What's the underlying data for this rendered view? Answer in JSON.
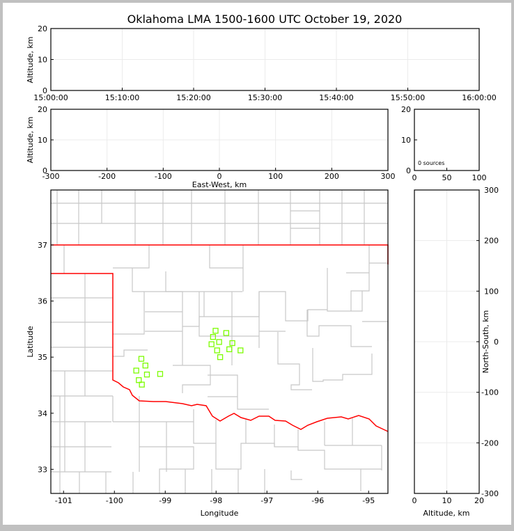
{
  "chart_data": [
    {
      "id": "time-altitude",
      "type": "scatter",
      "title": "Oklahoma LMA 1500-1600 UTC October 19, 2020",
      "ylabel": "Altitude, km",
      "xlim": [
        "15:00:00",
        "16:00:00"
      ],
      "ylim": [
        0,
        20
      ],
      "xticks": [
        "15:00:00",
        "15:10:00",
        "15:20:00",
        "15:30:00",
        "15:40:00",
        "15:50:00",
        "16:00:00"
      ],
      "yticks": [
        0,
        10,
        20
      ],
      "grid": true,
      "points": []
    },
    {
      "id": "eastwest-altitude",
      "type": "scatter",
      "xlabel": "East-West, km",
      "ylabel": "Altitude, km",
      "xlim": [
        -300,
        300
      ],
      "ylim": [
        0,
        20
      ],
      "xticks": [
        -300,
        -200,
        -100,
        0,
        100,
        200,
        300
      ],
      "yticks": [
        0,
        10,
        20
      ],
      "grid": true,
      "points": []
    },
    {
      "id": "altitude-histogram",
      "type": "bar",
      "xlim": [
        0,
        100
      ],
      "ylim": [
        0,
        20
      ],
      "xticks": [
        0,
        50,
        100
      ],
      "yticks": [
        0,
        10,
        20
      ],
      "annotation": "0 sources",
      "values": []
    },
    {
      "id": "plan-view",
      "type": "scatter",
      "xlabel": "Longitude",
      "ylabel": "Latitude",
      "xlim": [
        -101.25,
        -94.62
      ],
      "ylim": [
        32.57,
        37.98
      ],
      "xticks": [
        -101,
        -100,
        -99,
        -98,
        -97,
        -96,
        -95
      ],
      "yticks": [
        33,
        34,
        35,
        36,
        37
      ],
      "marker": "open-square",
      "marker_color": "#7cfc00",
      "border_color": "#ff0000",
      "county_color": "#c8c8c8",
      "points": [
        {
          "lon": -98.01,
          "lat": 35.47
        },
        {
          "lon": -97.8,
          "lat": 35.43
        },
        {
          "lon": -98.06,
          "lat": 35.36
        },
        {
          "lon": -97.94,
          "lat": 35.27
        },
        {
          "lon": -98.09,
          "lat": 35.23
        },
        {
          "lon": -97.68,
          "lat": 35.25
        },
        {
          "lon": -97.98,
          "lat": 35.12
        },
        {
          "lon": -97.74,
          "lat": 35.14
        },
        {
          "lon": -97.52,
          "lat": 35.12
        },
        {
          "lon": -97.92,
          "lat": 35.0
        },
        {
          "lon": -99.47,
          "lat": 34.97
        },
        {
          "lon": -99.39,
          "lat": 34.85
        },
        {
          "lon": -99.57,
          "lat": 34.76
        },
        {
          "lon": -99.36,
          "lat": 34.69
        },
        {
          "lon": -99.1,
          "lat": 34.7
        },
        {
          "lon": -99.52,
          "lat": 34.59
        },
        {
          "lon": -99.46,
          "lat": 34.51
        }
      ]
    },
    {
      "id": "northsouth-altitude",
      "type": "scatter",
      "xlabel": "Altitude, km",
      "ylabel": "North-South, km",
      "xlim": [
        0,
        20
      ],
      "ylim": [
        -300,
        300
      ],
      "xticks": [
        0,
        10,
        20
      ],
      "yticks": [
        -300,
        -200,
        -100,
        0,
        100,
        200,
        300
      ],
      "grid": true,
      "points": []
    }
  ]
}
